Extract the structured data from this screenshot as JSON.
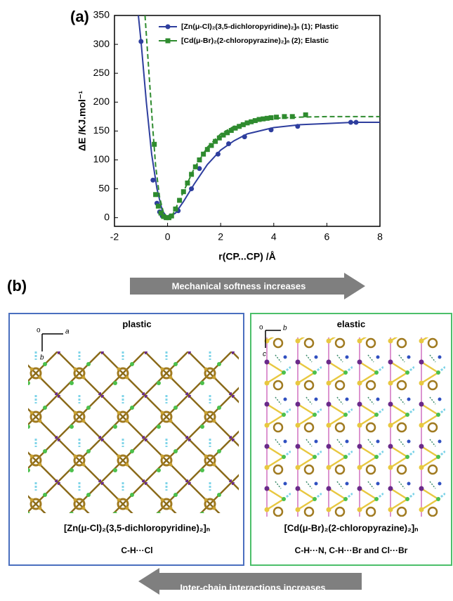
{
  "chart_data": {
    "type": "scatter",
    "label": "(a)",
    "xlabel": "r(CP...CP) /Å",
    "ylabel": "ΔE /KJ.mol⁻¹",
    "xlim": [
      -2,
      8
    ],
    "xticks": [
      -2,
      0,
      2,
      4,
      6,
      8
    ],
    "ylim": [
      -15,
      350
    ],
    "yticks": [
      0,
      50,
      100,
      150,
      200,
      250,
      300,
      350
    ],
    "legend": "top-right",
    "series": [
      {
        "name": "[Zn(μ-Cl)₂(3,5-dichloropyridine)₂]ₙ (1); Plastic",
        "color": "#2e3e9e",
        "marker": "circle",
        "x": [
          -1.0,
          -0.55,
          -0.4,
          -0.3,
          -0.2,
          -0.1,
          0,
          0.1,
          0.4,
          0.9,
          1.2,
          1.9,
          2.3,
          2.9,
          3.9,
          4.9,
          6.9,
          7.1
        ],
        "values": [
          305,
          65,
          25,
          10,
          3,
          1,
          0,
          2,
          12,
          50,
          85,
          110,
          128,
          140,
          152,
          158,
          165,
          165
        ],
        "fit": {
          "style": "solid",
          "x": [
            -1.1,
            -1.0,
            -0.8,
            -0.6,
            -0.4,
            -0.2,
            0,
            0.3,
            0.6,
            1,
            1.5,
            2,
            2.5,
            3,
            4,
            5,
            6,
            7,
            8
          ],
          "values": [
            350,
            305,
            200,
            110,
            50,
            12,
            0,
            8,
            28,
            58,
            92,
            117,
            133,
            145,
            156,
            161,
            163,
            165,
            165
          ]
        }
      },
      {
        "name": "[Cd(μ-Br)₂(2-chloropyrazine)₂]ₙ (2); Elastic",
        "color": "#2e8b2e",
        "marker": "square",
        "x": [
          -0.5,
          -0.45,
          -0.35,
          -0.25,
          -0.15,
          -0.05,
          0.05,
          0.15,
          0.3,
          0.45,
          0.6,
          0.75,
          0.9,
          1.05,
          1.2,
          1.35,
          1.5,
          1.65,
          1.8,
          1.95,
          2.1,
          2.25,
          2.4,
          2.55,
          2.7,
          2.85,
          3.0,
          3.15,
          3.3,
          3.45,
          3.6,
          3.75,
          3.9,
          4.1,
          4.4,
          4.7,
          5.2
        ],
        "values": [
          127,
          40,
          20,
          8,
          2,
          0,
          0,
          3,
          15,
          30,
          45,
          60,
          75,
          88,
          100,
          110,
          118,
          125,
          132,
          138,
          143,
          147,
          151,
          155,
          158,
          161,
          164,
          166,
          168,
          170,
          171,
          172,
          173,
          174,
          175,
          175,
          178
        ],
        "fit": {
          "style": "dashed",
          "x": [
            -0.85,
            -0.7,
            -0.55,
            -0.45,
            -0.3,
            -0.15,
            0,
            0.2,
            0.5,
            1,
            1.5,
            2,
            2.5,
            3,
            4,
            5,
            6,
            8
          ],
          "values": [
            350,
            250,
            150,
            90,
            35,
            8,
            0,
            6,
            35,
            85,
            122,
            145,
            158,
            165,
            172,
            174,
            175,
            175
          ]
        }
      }
    ]
  },
  "panel_b": {
    "label": "(b)",
    "top_arrow": "Mechanical softness increases",
    "bottom_arrow": "Inter-chain interactions increases",
    "left": {
      "title": "plastic",
      "axes": [
        "o",
        "a",
        "b"
      ],
      "formula": "[Zn(μ-Cl)₂(3,5-dichloropyridine)₂]ₙ",
      "interactions": "C-H···Cl"
    },
    "right": {
      "title": "elastic",
      "axes": [
        "o",
        "b",
        "c"
      ],
      "formula": "[Cd(μ-Br)₂(2-chloropyrazine)₂]ₙ",
      "interactions": "C-H···N, C-H···Br and  Cl···Br"
    }
  }
}
